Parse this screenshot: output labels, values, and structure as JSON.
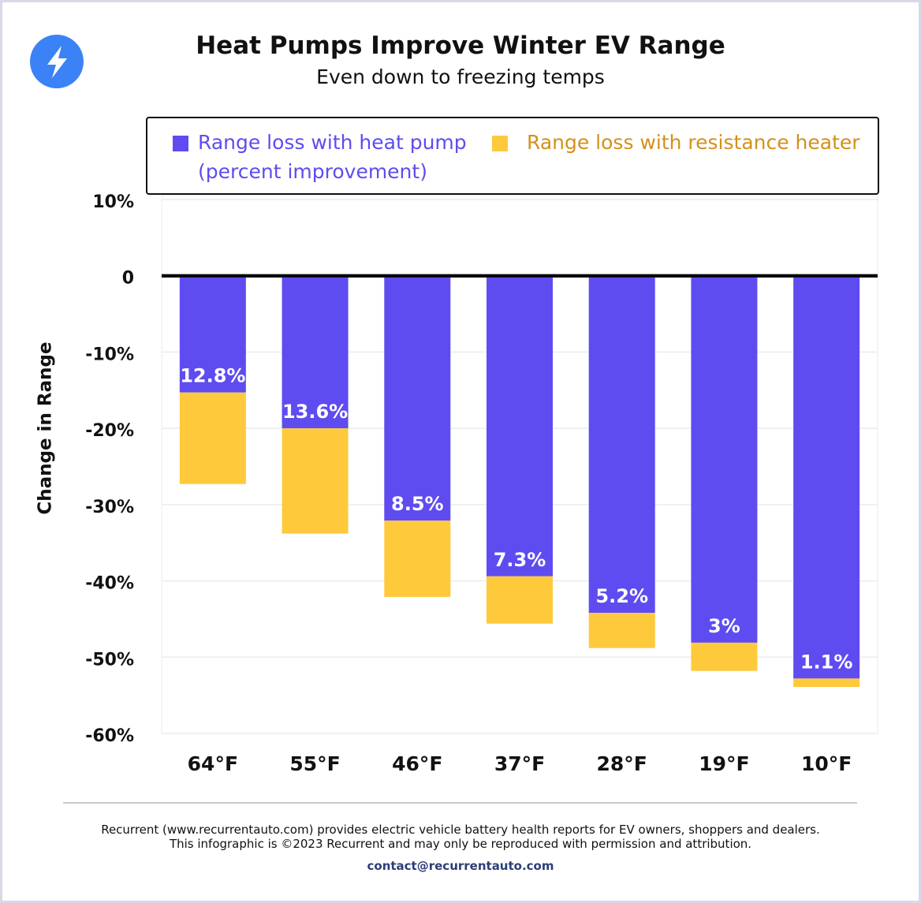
{
  "chart_data": {
    "type": "bar",
    "stacked": true,
    "title": "Heat Pumps Improve Winter EV Range",
    "subtitle": "Even down to freezing temps",
    "y_label": "Change in Range",
    "categories": [
      "64°F",
      "55°F",
      "46°F",
      "37°F",
      "28°F",
      "19°F",
      "10°F"
    ],
    "series": [
      {
        "name": "Range loss with heat pump (percent improvement)",
        "color": "#5e4cf0",
        "values": [
          -15.3,
          -20.0,
          -32.1,
          -39.4,
          -44.2,
          -48.1,
          -52.8
        ],
        "labels": [
          "12.8%",
          "13.6%",
          "8.5%",
          "7.3%",
          "5.2%",
          "3%",
          "1.1%"
        ]
      },
      {
        "name": "Range loss with resistance heater",
        "color": "#ffc93c",
        "text_color": "#d4901a",
        "values": [
          -12.0,
          -13.8,
          -10.0,
          -6.2,
          -4.6,
          -3.7,
          -1.1
        ]
      }
    ],
    "ylim": [
      -60,
      10
    ],
    "yticks": [
      {
        "value": 10,
        "label": "10%"
      },
      0,
      {
        "value": -10,
        "label": "-10%"
      },
      {
        "value": -20,
        "label": "-20%"
      },
      {
        "value": -30,
        "label": "-30%"
      },
      {
        "value": -40,
        "label": "-40%"
      },
      {
        "value": -50,
        "label": "-50%"
      },
      {
        "value": -60,
        "label": "-60%"
      }
    ],
    "grid": true
  },
  "footer": {
    "lines": [
      "Recurrent (www.recurrentauto.com) provides electric vehicle battery health reports for EV owners, shoppers and dealers.",
      "This infographic is ©2023 Recurrent and may only be reproduced with permission and attribution."
    ],
    "contact": "contact@recurrentauto.com"
  }
}
